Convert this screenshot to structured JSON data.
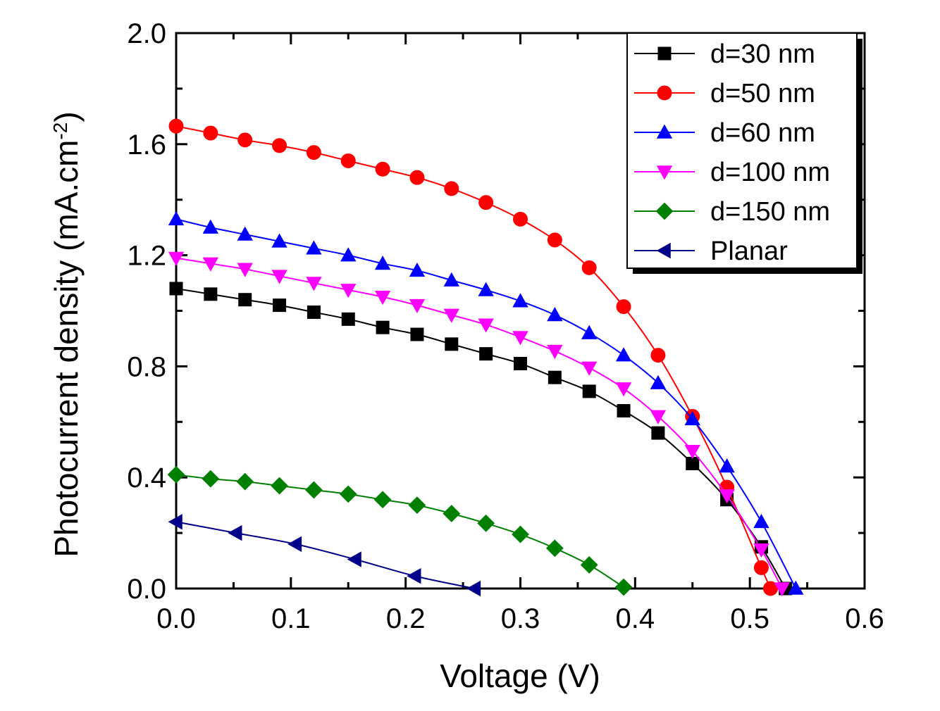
{
  "chart_data": {
    "type": "line",
    "title": "",
    "xlabel": "Voltage (V)",
    "ylabel": "Photocurrent density (mA.cm",
    "ylabel_superscript": "-2",
    "ylabel_suffix": ")",
    "xlim": [
      0.0,
      0.6
    ],
    "ylim": [
      0.0,
      2.0
    ],
    "xticks": [
      "0.0",
      "0.1",
      "0.2",
      "0.3",
      "0.4",
      "0.5",
      "0.6"
    ],
    "yticks": [
      "0.0",
      "0.4",
      "0.8",
      "1.2",
      "1.6",
      "2.0"
    ],
    "grid": false,
    "legend_position": "top-right",
    "series": [
      {
        "name": "d=30 nm",
        "color": "#000000",
        "marker": "square",
        "x": [
          0.0,
          0.03,
          0.06,
          0.09,
          0.12,
          0.15,
          0.18,
          0.21,
          0.24,
          0.27,
          0.3,
          0.33,
          0.36,
          0.39,
          0.42,
          0.45,
          0.48,
          0.51,
          0.531
        ],
        "y": [
          1.08,
          1.06,
          1.04,
          1.02,
          0.995,
          0.97,
          0.94,
          0.915,
          0.88,
          0.845,
          0.81,
          0.76,
          0.71,
          0.64,
          0.56,
          0.45,
          0.32,
          0.15,
          0.0
        ]
      },
      {
        "name": "d=50 nm",
        "color": "#ff0000",
        "marker": "circle",
        "x": [
          0.0,
          0.03,
          0.06,
          0.09,
          0.12,
          0.15,
          0.18,
          0.21,
          0.24,
          0.27,
          0.3,
          0.33,
          0.36,
          0.39,
          0.42,
          0.45,
          0.48,
          0.51,
          0.518
        ],
        "y": [
          1.665,
          1.64,
          1.615,
          1.595,
          1.57,
          1.54,
          1.51,
          1.48,
          1.44,
          1.39,
          1.33,
          1.255,
          1.155,
          1.015,
          0.84,
          0.62,
          0.365,
          0.075,
          0.0
        ]
      },
      {
        "name": "d=60 nm",
        "color": "#0000ff",
        "marker": "triangle-up",
        "x": [
          0.0,
          0.03,
          0.06,
          0.09,
          0.12,
          0.15,
          0.18,
          0.21,
          0.24,
          0.27,
          0.3,
          0.33,
          0.36,
          0.39,
          0.42,
          0.45,
          0.48,
          0.51,
          0.54
        ],
        "y": [
          1.33,
          1.3,
          1.275,
          1.25,
          1.225,
          1.2,
          1.17,
          1.145,
          1.11,
          1.075,
          1.035,
          0.985,
          0.92,
          0.84,
          0.74,
          0.61,
          0.44,
          0.24,
          0.0
        ]
      },
      {
        "name": "d=100 nm",
        "color": "#ff00ff",
        "marker": "triangle-down",
        "x": [
          0.0,
          0.03,
          0.06,
          0.09,
          0.12,
          0.15,
          0.18,
          0.21,
          0.24,
          0.27,
          0.3,
          0.33,
          0.36,
          0.39,
          0.42,
          0.45,
          0.48,
          0.51,
          0.528
        ],
        "y": [
          1.19,
          1.17,
          1.15,
          1.125,
          1.1,
          1.075,
          1.05,
          1.02,
          0.985,
          0.95,
          0.905,
          0.855,
          0.795,
          0.72,
          0.62,
          0.495,
          0.335,
          0.14,
          0.0
        ]
      },
      {
        "name": "d=150 nm",
        "color": "#008000",
        "marker": "diamond",
        "x": [
          0.0,
          0.03,
          0.06,
          0.09,
          0.12,
          0.15,
          0.18,
          0.21,
          0.24,
          0.27,
          0.3,
          0.33,
          0.36,
          0.39
        ],
        "y": [
          0.41,
          0.395,
          0.385,
          0.37,
          0.355,
          0.34,
          0.32,
          0.3,
          0.27,
          0.235,
          0.195,
          0.145,
          0.085,
          0.005
        ]
      },
      {
        "name": "Planar",
        "color": "#00008b",
        "marker": "triangle-left",
        "x": [
          0.0,
          0.052,
          0.104,
          0.156,
          0.208,
          0.26
        ],
        "y": [
          0.24,
          0.2,
          0.16,
          0.105,
          0.045,
          0.0
        ]
      }
    ]
  }
}
